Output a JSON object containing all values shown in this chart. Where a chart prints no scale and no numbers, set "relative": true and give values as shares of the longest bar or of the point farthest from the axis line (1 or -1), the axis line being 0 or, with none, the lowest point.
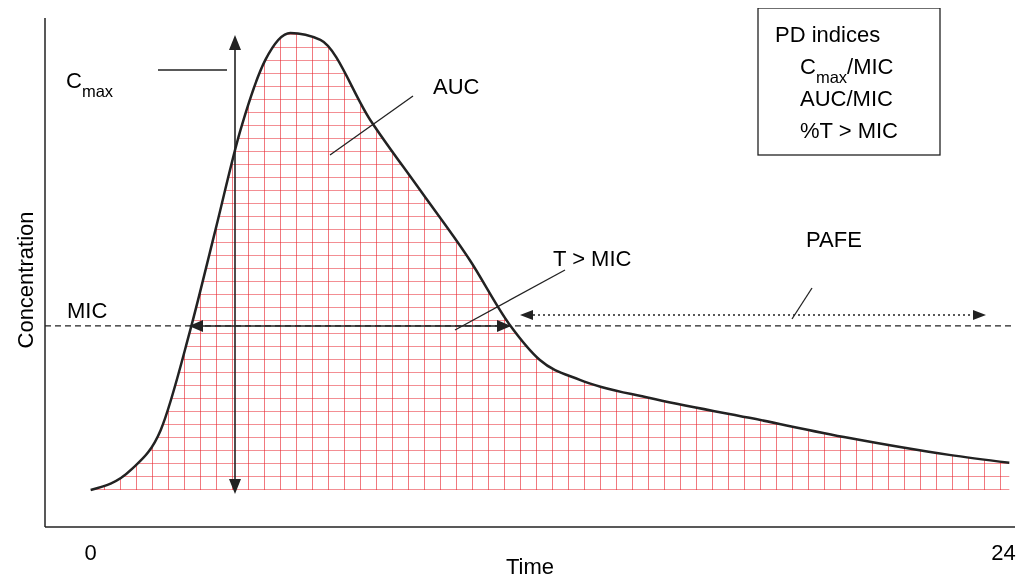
{
  "chart_data": {
    "type": "area",
    "relative": true,
    "xlabel": "Time",
    "ylabel": "Concentration",
    "x": [
      0,
      1.05,
      1.84,
      2.62,
      3.28,
      3.94,
      4.59,
      5.25,
      6.04,
      7.35,
      8.66,
      9.97,
      11.02,
      11.81,
      12.86,
      14.7,
      17.32,
      19.95,
      22.57,
      24.15
    ],
    "series": [
      {
        "color": "#e8202a",
        "values": [
          0.075,
          0.115,
          0.196,
          0.399,
          0.601,
          0.804,
          0.945,
          1,
          0.986,
          0.824,
          0.682,
          0.54,
          0.409,
          0.338,
          0.298,
          0.261,
          0.221,
          0.18,
          0.146,
          0.13
        ]
      }
    ],
    "xlim": [
      -1.2,
      24.3
    ],
    "xticks": [
      0,
      24
    ],
    "ref_lines": [
      {
        "axis": "y",
        "value": 0.407,
        "label": "MIC",
        "line_style": "dashed"
      }
    ],
    "annotations": [
      "C$_{max}$",
      "AUC",
      "T > MIC",
      "PAFE",
      "PD indices",
      "C$_{max}$/MIC",
      "AUC/MIC",
      "%T > MIC"
    ],
    "tick_labels": "x"
  }
}
